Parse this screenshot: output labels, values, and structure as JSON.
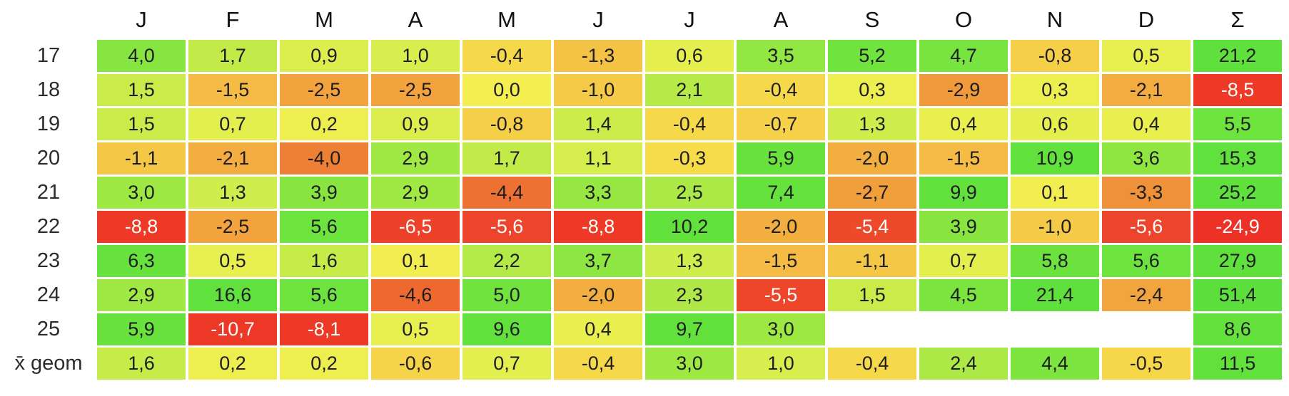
{
  "chart_data": {
    "type": "heatmap",
    "columns": [
      "J",
      "F",
      "M",
      "A",
      "M",
      "J",
      "J",
      "A",
      "S",
      "O",
      "N",
      "D",
      "Σ"
    ],
    "rows": [
      "17",
      "18",
      "19",
      "20",
      "21",
      "22",
      "23",
      "24",
      "25",
      "x̄ geom"
    ],
    "values": [
      [
        4.0,
        1.7,
        0.9,
        1.0,
        -0.4,
        -1.3,
        0.6,
        3.5,
        5.2,
        4.7,
        -0.8,
        0.5,
        21.2
      ],
      [
        1.5,
        -1.5,
        -2.5,
        -2.5,
        0.0,
        -1.0,
        2.1,
        -0.4,
        0.3,
        -2.9,
        0.3,
        -2.1,
        -8.5
      ],
      [
        1.5,
        0.7,
        0.2,
        0.9,
        -0.8,
        1.4,
        -0.4,
        -0.7,
        1.3,
        0.4,
        0.6,
        0.4,
        5.5
      ],
      [
        -1.1,
        -2.1,
        -4.0,
        2.9,
        1.7,
        1.1,
        -0.3,
        5.9,
        -2.0,
        -1.5,
        10.9,
        3.6,
        15.3
      ],
      [
        3.0,
        1.3,
        3.9,
        2.9,
        -4.4,
        3.3,
        2.5,
        7.4,
        -2.7,
        9.9,
        0.1,
        -3.3,
        25.2
      ],
      [
        -8.8,
        -2.5,
        5.6,
        -6.5,
        -5.6,
        -8.8,
        10.2,
        -2.0,
        -5.4,
        3.9,
        -1.0,
        -5.6,
        -24.9
      ],
      [
        6.3,
        0.5,
        1.6,
        0.1,
        2.2,
        3.7,
        1.3,
        -1.5,
        -1.1,
        0.7,
        5.8,
        5.6,
        27.9
      ],
      [
        2.9,
        16.6,
        5.6,
        -4.6,
        5.0,
        -2.0,
        2.3,
        -5.5,
        1.5,
        4.5,
        21.4,
        -2.4,
        51.4
      ],
      [
        5.9,
        -10.7,
        -8.1,
        0.5,
        9.6,
        0.4,
        9.7,
        3.0,
        null,
        null,
        null,
        null,
        8.6
      ],
      [
        1.6,
        0.2,
        0.2,
        -0.6,
        0.7,
        -0.4,
        3.0,
        1.0,
        -0.4,
        2.4,
        4.4,
        -0.5,
        11.5
      ]
    ],
    "value_format": "one decimal place, comma as decimal separator",
    "grid": "white gaps between colored cells",
    "legend": "none"
  },
  "heatmap_style": {
    "color_stops": [
      [
        -25.0,
        "#ee3126"
      ],
      [
        -8.0,
        "#ee3927"
      ],
      [
        -5.5,
        "#ed462b"
      ],
      [
        -4.0,
        "#ed8034"
      ],
      [
        -3.0,
        "#f0983b"
      ],
      [
        -2.0,
        "#f3ae40"
      ],
      [
        -1.0,
        "#f5ca47"
      ],
      [
        -0.3,
        "#f6dc4b"
      ],
      [
        0.0,
        "#f4ee51"
      ],
      [
        0.5,
        "#e8ef50"
      ],
      [
        1.0,
        "#d8ee4e"
      ],
      [
        1.5,
        "#c9ec4b"
      ],
      [
        2.0,
        "#b8ea48"
      ],
      [
        3.0,
        "#9de843"
      ],
      [
        4.0,
        "#86e540"
      ],
      [
        5.0,
        "#71e33e"
      ],
      [
        6.5,
        "#66e23e"
      ],
      [
        10.0,
        "#62e13d"
      ],
      [
        52.0,
        "#5cdf3c"
      ]
    ],
    "white_text_at_or_below": -5.0,
    "cell_text_color": "#1d1d1f",
    "white_cell_text_color": "#ffffff",
    "row_label_color": "#2c2c2e",
    "header_color": "#111111",
    "background": "#ffffff",
    "empty_cell_color": "#ffffff"
  }
}
